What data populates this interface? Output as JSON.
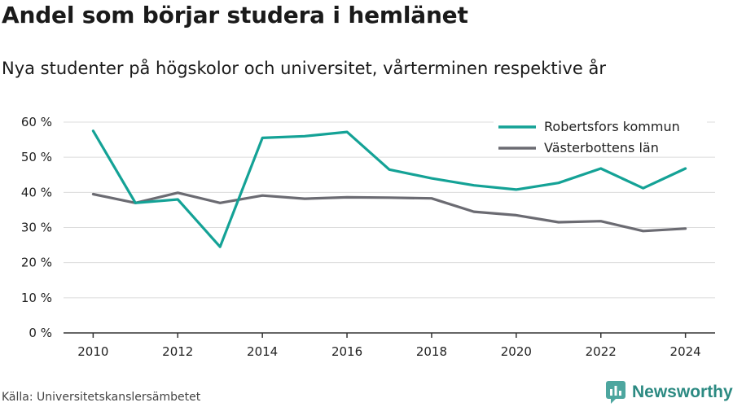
{
  "title": "Andel som börjar studera i hemlänet",
  "subtitle": "Nya studenter på högskolor och universitet, vårterminen respektive år",
  "source": "Källa: Universitetskanslersämbetet",
  "brand": {
    "name": "Newsworthy",
    "logo_icon": "newsworthy-logo-icon"
  },
  "chart_data": {
    "type": "line",
    "x": [
      2010,
      2011,
      2012,
      2013,
      2014,
      2015,
      2016,
      2017,
      2018,
      2019,
      2020,
      2021,
      2022,
      2023,
      2024
    ],
    "x_ticks": [
      2010,
      2012,
      2014,
      2016,
      2018,
      2020,
      2022,
      2024
    ],
    "y_ticks": [
      0,
      10,
      20,
      30,
      40,
      50,
      60
    ],
    "y_tick_labels": [
      "0 %",
      "10 %",
      "20 %",
      "30 %",
      "40 %",
      "50 %",
      "60 %"
    ],
    "ylim": [
      0,
      60
    ],
    "xlim": [
      2009.3,
      2024.7
    ],
    "grid": true,
    "legend_position": "top-right",
    "series": [
      {
        "name": "Robertsfors kommun",
        "color": "#14a296",
        "values": [
          57.5,
          37,
          38,
          24.5,
          55.5,
          56,
          57.2,
          46.5,
          44,
          42,
          40.8,
          42.7,
          46.8,
          41.2,
          46.8
        ]
      },
      {
        "name": "Västerbottens län",
        "color": "#6b6b72",
        "values": [
          39.5,
          37,
          39.9,
          37,
          39.1,
          38.2,
          38.6,
          38.5,
          38.3,
          34.5,
          33.5,
          31.5,
          31.8,
          29,
          29.7
        ]
      }
    ]
  }
}
